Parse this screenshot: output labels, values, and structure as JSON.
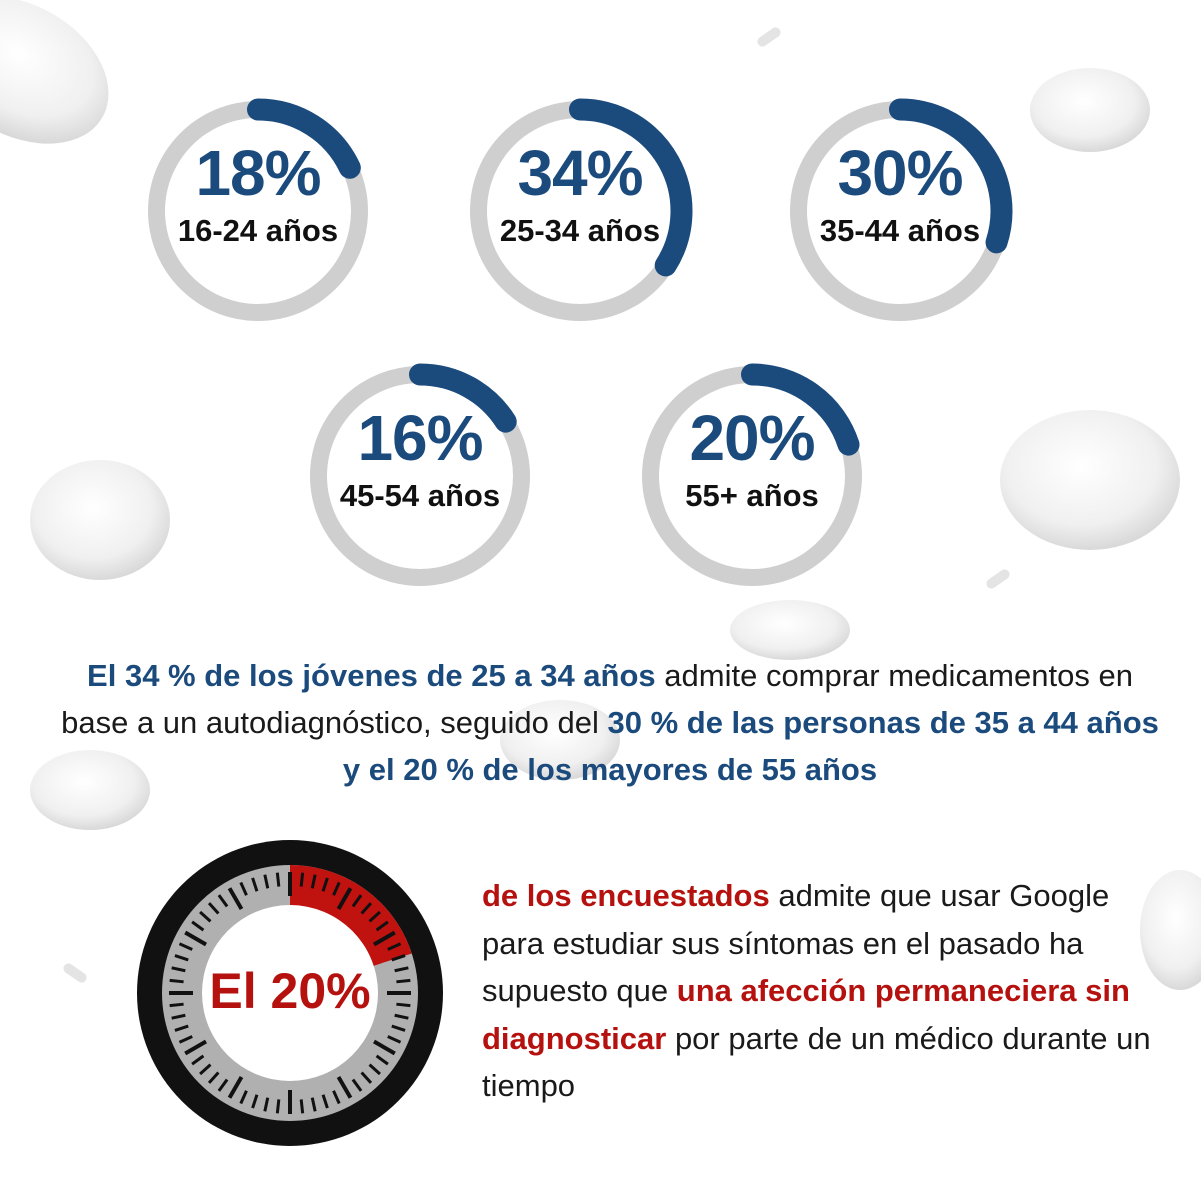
{
  "rings": [
    {
      "value_pct": 18,
      "pct_label": "18%",
      "age_label": "16-24 años"
    },
    {
      "value_pct": 34,
      "pct_label": "34%",
      "age_label": "25-34 años"
    },
    {
      "value_pct": 30,
      "pct_label": "30%",
      "age_label": "35-44 años"
    },
    {
      "value_pct": 16,
      "pct_label": "16%",
      "age_label": "45-54 años"
    },
    {
      "value_pct": 20,
      "pct_label": "20%",
      "age_label": "55+ años"
    }
  ],
  "summary": {
    "part1": "El 34 % de los jóvenes de 25 a 34 años",
    "part2": " admite comprar medicamentos en base a un autodiagnóstico, seguido del ",
    "part3": "30 % de las personas de 35 a 44 años y el 20 % de los mayores de 55 años"
  },
  "timer": {
    "label": "El 20%",
    "value_pct": 20
  },
  "finding": {
    "part1": "de los encuestados",
    "part2": " admite que usar Google para estudiar sus síntomas en el pasado ha supuesto que ",
    "part3": "una afección permaneciera sin diagnosticar",
    "part4": " por parte de un médico durante un tiempo"
  },
  "colors": {
    "accent_blue": "#1b4a7d",
    "accent_red": "#b5120f",
    "ring_track": "#cfcfcf",
    "timer_rim": "#111111",
    "timer_face": "#b0b0b0"
  },
  "icons": {
    "background": "blood-cells-and-pills-decoration",
    "timer": "stopwatch-icon"
  }
}
